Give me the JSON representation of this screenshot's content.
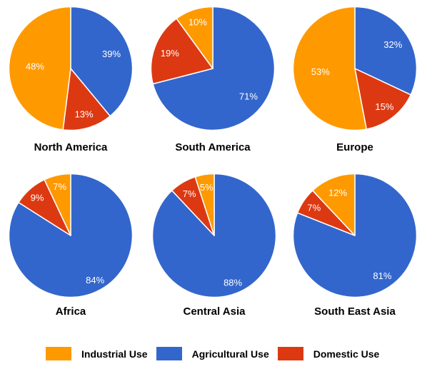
{
  "page": {
    "background": "#FFFFFF"
  },
  "legend": {
    "items": [
      {
        "label": "Industrial Use",
        "color": "#FF9900"
      },
      {
        "label": "Agricultural Use",
        "color": "#3366CC"
      },
      {
        "label": "Domestic Use",
        "color": "#DC3912"
      }
    ]
  },
  "chart_data": {
    "type": "pie",
    "unit": "%",
    "rotation": "clockwise-from-top",
    "legend_position": "bottom",
    "slice_label_color": "#FFFFFF",
    "slice_border_color": "#FFFFFF",
    "pie_radius_px": 87,
    "colors": {
      "Industrial Use": "#FF9900",
      "Agricultural Use": "#3366CC",
      "Domestic Use": "#DC3912"
    },
    "categories": [
      "Agricultural Use",
      "Domestic Use",
      "Industrial Use"
    ],
    "charts": [
      {
        "title": "North America",
        "slices": [
          {
            "name": "Agricultural Use",
            "value": 39,
            "label": "39%",
            "label_r": 0.7
          },
          {
            "name": "Domestic Use",
            "value": 13,
            "label": "13%",
            "label_r": 0.77
          },
          {
            "name": "Industrial Use",
            "value": 48,
            "label": "48%",
            "label_r": 0.58
          }
        ]
      },
      {
        "title": "South America",
        "slices": [
          {
            "name": "Agricultural Use",
            "value": 71,
            "label": "71%",
            "label_r": 0.73
          },
          {
            "name": "Domestic Use",
            "value": 19,
            "label": "19%",
            "label_r": 0.74
          },
          {
            "name": "Industrial Use",
            "value": 10,
            "label": "10%",
            "label_r": 0.79
          }
        ]
      },
      {
        "title": "Europe",
        "slices": [
          {
            "name": "Agricultural Use",
            "value": 32,
            "label": "32%",
            "label_r": 0.73
          },
          {
            "name": "Domestic Use",
            "value": 15,
            "label": "15%",
            "label_r": 0.78
          },
          {
            "name": "Industrial Use",
            "value": 53,
            "label": "53%",
            "label_r": 0.56
          }
        ]
      },
      {
        "title": "Africa",
        "slices": [
          {
            "name": "Agricultural Use",
            "value": 84,
            "label": "84%",
            "label_r": 0.82
          },
          {
            "name": "Domestic Use",
            "value": 9,
            "label": "9%",
            "label_r": 0.82
          },
          {
            "name": "Industrial Use",
            "value": 7,
            "label": "7%",
            "label_r": 0.81
          }
        ]
      },
      {
        "title": "Central Asia",
        "slices": [
          {
            "name": "Agricultural Use",
            "value": 88,
            "label": "88%",
            "label_r": 0.82
          },
          {
            "name": "Domestic Use",
            "value": 7,
            "label": "7%",
            "label_r": 0.79
          },
          {
            "name": "Industrial Use",
            "value": 5,
            "label": "5%",
            "label_r": 0.79
          }
        ]
      },
      {
        "title": "South East Asia",
        "slices": [
          {
            "name": "Agricultural Use",
            "value": 81,
            "label": "81%",
            "label_r": 0.79
          },
          {
            "name": "Domestic Use",
            "value": 7,
            "label": "7%",
            "label_r": 0.8
          },
          {
            "name": "Industrial Use",
            "value": 12,
            "label": "12%",
            "label_r": 0.75
          }
        ]
      }
    ]
  }
}
